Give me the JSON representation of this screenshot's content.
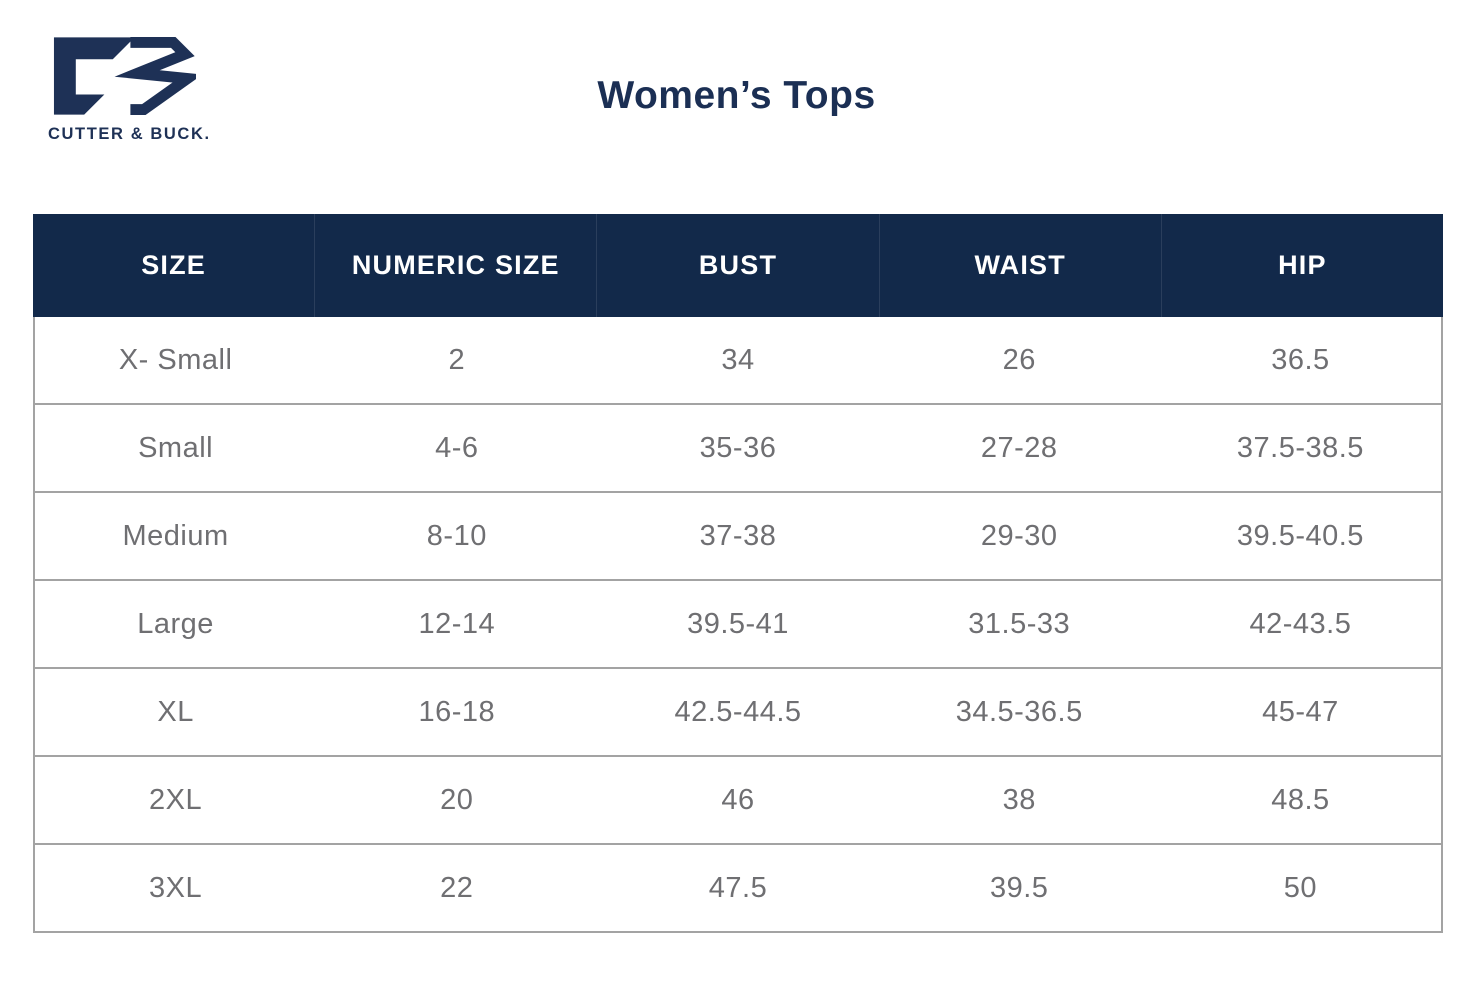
{
  "brand": {
    "name": "CUTTER & BUCK.",
    "logo_icon": "cutter-buck-cb-monogram"
  },
  "page": {
    "title": "Women’s Tops"
  },
  "colors": {
    "header_bg": "#12294a",
    "header_text": "#ffffff",
    "brand_navy": "#1e3156",
    "title_navy": "#1b2f54",
    "body_text": "#6f6f72",
    "border": "#a3a3a3",
    "background": "#ffffff"
  },
  "chart_data": {
    "type": "table",
    "title": "Women’s Tops",
    "columns": [
      "SIZE",
      "NUMERIC SIZE",
      "BUST",
      "WAIST",
      "HIP"
    ],
    "rows": [
      [
        "X- Small",
        "2",
        "34",
        "26",
        "36.5"
      ],
      [
        "Small",
        "4-6",
        "35-36",
        "27-28",
        "37.5-38.5"
      ],
      [
        "Medium",
        "8-10",
        "37-38",
        "29-30",
        "39.5-40.5"
      ],
      [
        "Large",
        "12-14",
        "39.5-41",
        "31.5-33",
        "42-43.5"
      ],
      [
        "XL",
        "16-18",
        "42.5-44.5",
        "34.5-36.5",
        "45-47"
      ],
      [
        "2XL",
        "20",
        "46",
        "38",
        "48.5"
      ],
      [
        "3XL",
        "22",
        "47.5",
        "39.5",
        "50"
      ]
    ],
    "layout": {
      "header_style": "navy-bar-white-text",
      "row_dividers": true,
      "column_dividers_body": false,
      "alignment": "center"
    }
  }
}
